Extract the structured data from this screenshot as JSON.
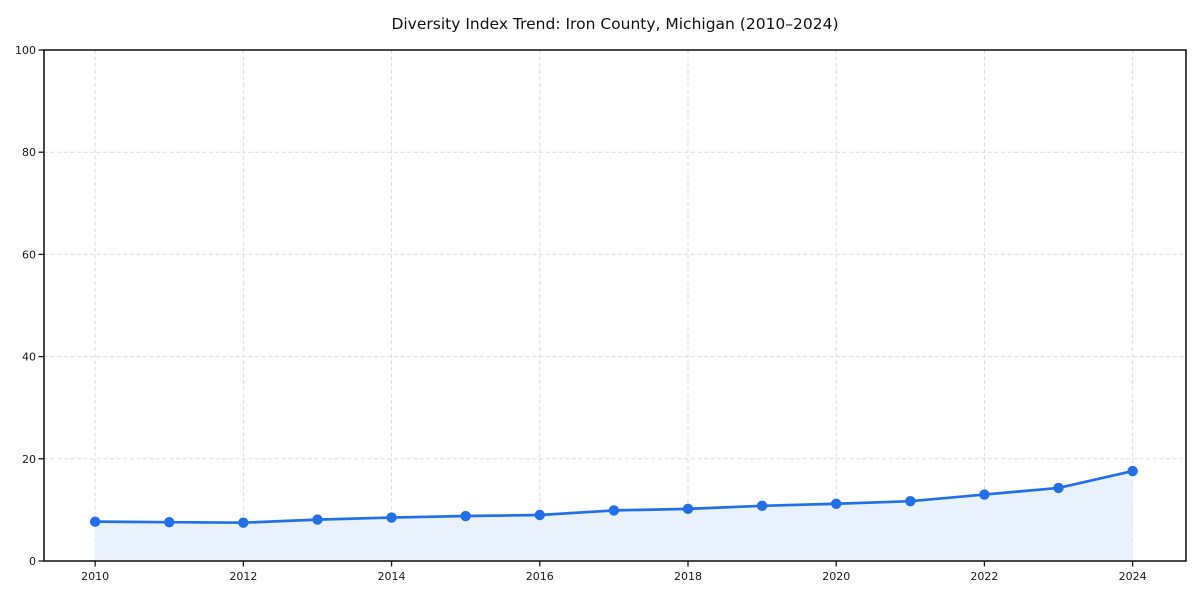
{
  "chart_data": {
    "type": "area",
    "title": "Diversity Index Trend: Iron County, Michigan (2010–2024)",
    "xlabel": "",
    "ylabel": "",
    "x": [
      2010,
      2011,
      2012,
      2013,
      2014,
      2015,
      2016,
      2017,
      2018,
      2019,
      2020,
      2021,
      2022,
      2023,
      2024
    ],
    "values": [
      7.7,
      7.6,
      7.5,
      8.1,
      8.5,
      8.8,
      9.0,
      9.9,
      10.2,
      10.8,
      11.2,
      11.7,
      13.0,
      14.3,
      17.6
    ],
    "series_name": "Diversity Index",
    "xlim": [
      2009.31,
      2024.72
    ],
    "ylim": [
      0,
      100
    ],
    "x_tick_values": [
      2010,
      2012,
      2014,
      2016,
      2018,
      2020,
      2022,
      2024
    ],
    "x_tick_labels": [
      "2010",
      "2012",
      "2014",
      "2016",
      "2018",
      "2020",
      "2022",
      "2024"
    ],
    "y_tick_values": [
      0,
      20,
      40,
      60,
      80,
      100
    ],
    "y_tick_labels": [
      "0",
      "20",
      "40",
      "60",
      "80",
      "100"
    ],
    "grid": "dashed",
    "grid_on": true,
    "legend": false,
    "marker": "circle",
    "colors": {
      "line": "#2170e8",
      "marker": "#2170e8",
      "area_fill": "#e9f1fd",
      "grid": "#dcdcdc",
      "spine": "#1a1a1a",
      "text": "#1a1a1a",
      "background": "#ffffff"
    }
  }
}
